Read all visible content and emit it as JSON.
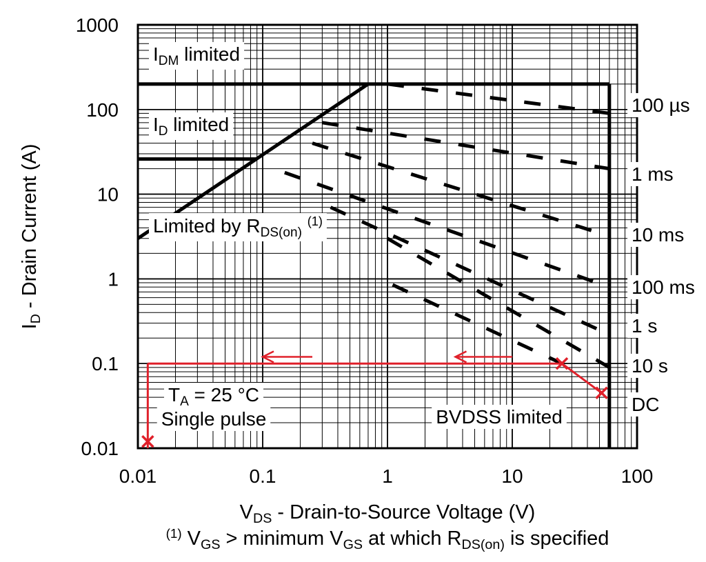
{
  "chart_data": {
    "type": "line",
    "scale": {
      "x": "log",
      "y": "log"
    },
    "xlim": [
      0.01,
      100
    ],
    "ylim": [
      0.01,
      1000
    ],
    "grid": true,
    "x_ticks": [
      "0.01",
      "0.1",
      "1",
      "10",
      "100"
    ],
    "y_ticks": [
      "0.01",
      "0.1",
      "1",
      "10",
      "100",
      "1000"
    ],
    "xlabel": {
      "main": "V",
      "sub": "DS",
      "rest": " - Drain-to-Source Voltage (V)"
    },
    "ylabel": {
      "main": "I",
      "sub": "D",
      "rest": " - Drain Current (A)"
    },
    "footnote": {
      "sup": "(1)",
      "p1": " V",
      "sub1": "GS",
      "p2": " > minimum V",
      "sub2": "GS",
      "p3": " at which R",
      "sub3": "DS(on)",
      "p4": " is specified"
    },
    "limits": {
      "idm": {
        "current_a": 200,
        "label_main": "I",
        "label_sub": "DM",
        "label_rest": " limited"
      },
      "id": {
        "current_a": 26,
        "label_main": "I",
        "label_sub": "D",
        "label_rest": " limited"
      },
      "rdson": {
        "points": [
          [
            0.01,
            3
          ],
          [
            0.7,
            200
          ]
        ],
        "label_main": "Limited by R",
        "label_sub": "DS(on)",
        "label_sup": "(1)"
      },
      "bvdss": {
        "voltage_v": 60,
        "label": "BVDSS limited"
      }
    },
    "pulse_lines": [
      {
        "label": "100 µs",
        "points": [
          [
            1,
            200
          ],
          [
            60,
            90
          ]
        ]
      },
      {
        "label": "1 ms",
        "points": [
          [
            0.3,
            70
          ],
          [
            60,
            20
          ]
        ]
      },
      {
        "label": "10 ms",
        "points": [
          [
            0.25,
            40
          ],
          [
            60,
            3.2
          ]
        ]
      },
      {
        "label": "100 ms",
        "points": [
          [
            0.15,
            18
          ],
          [
            60,
            0.8
          ]
        ]
      },
      {
        "label": "1 s",
        "points": [
          [
            0.35,
            7
          ],
          [
            60,
            0.22
          ]
        ]
      },
      {
        "label": "10 s",
        "points": [
          [
            1,
            3
          ],
          [
            60,
            0.09
          ]
        ]
      },
      {
        "label": "DC",
        "points": [
          [
            1.1,
            0.85
          ],
          [
            25,
            0.1
          ]
        ]
      }
    ],
    "conditions": {
      "line1_main": "T",
      "line1_sub": "A",
      "line1_rest": " = 25 °C",
      "line2": "Single pulse"
    },
    "annotations": {
      "color": "#e0202a",
      "operating_line": [
        [
          0.012,
          0.1
        ],
        [
          25,
          0.1
        ]
      ],
      "derating_segment": [
        [
          25,
          0.1
        ],
        [
          52,
          0.045
        ]
      ],
      "drop_to_floor": [
        [
          0.012,
          0.1
        ],
        [
          0.012,
          0.01
        ]
      ],
      "cross_marks": [
        [
          25,
          0.1
        ],
        [
          52,
          0.045
        ],
        [
          0.012,
          0.012
        ]
      ],
      "arrows": [
        {
          "from": [
            0.25,
            0.12
          ],
          "to": [
            0.1,
            0.12
          ]
        },
        {
          "from": [
            10,
            0.12
          ],
          "to": [
            3.5,
            0.12
          ]
        }
      ]
    }
  }
}
